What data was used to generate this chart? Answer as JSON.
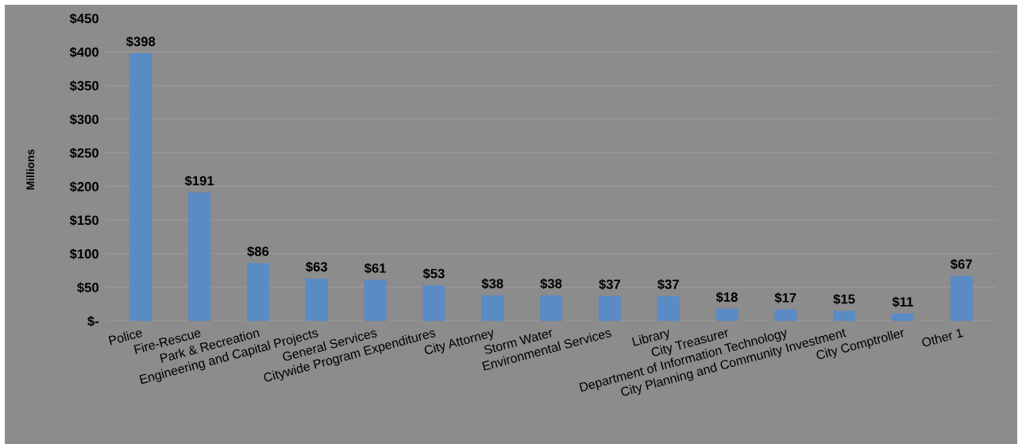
{
  "chart_data": {
    "type": "bar",
    "ylabel": "Millions",
    "categories": [
      "Police",
      "Fire-Rescue",
      "Park & Recreation",
      "Engineering and Capital Projects",
      "General Services",
      "Citywide Program Expenditures",
      "City Attorney",
      "Storm Water",
      "Environmental Services",
      "Library",
      "City Treasurer",
      "Department of Information Technology",
      "City Planning and Community Investment",
      "City Comptroller",
      "Other 1"
    ],
    "values": [
      398,
      191,
      86,
      63,
      61,
      53,
      38,
      38,
      37,
      37,
      18,
      17,
      15,
      11,
      67
    ],
    "value_labels": [
      "$398",
      "$191",
      "$86",
      "$63",
      "$61",
      "$53",
      "$38",
      "$38",
      "$37",
      "$37",
      "$18",
      "$17",
      "$15",
      "$11",
      "$67"
    ],
    "color": "#5b8bc5",
    "ylim": [
      0,
      450
    ],
    "yticks": [
      {
        "value": 0,
        "label": "$-"
      },
      {
        "value": 50,
        "label": "$50"
      },
      {
        "value": 100,
        "label": "$100"
      },
      {
        "value": 150,
        "label": "$150"
      },
      {
        "value": 200,
        "label": "$200"
      },
      {
        "value": 250,
        "label": "$250"
      },
      {
        "value": 300,
        "label": "$300"
      },
      {
        "value": 350,
        "label": "$350"
      },
      {
        "value": 400,
        "label": "$400"
      },
      {
        "value": 450,
        "label": "$450"
      }
    ],
    "grid": "y"
  }
}
